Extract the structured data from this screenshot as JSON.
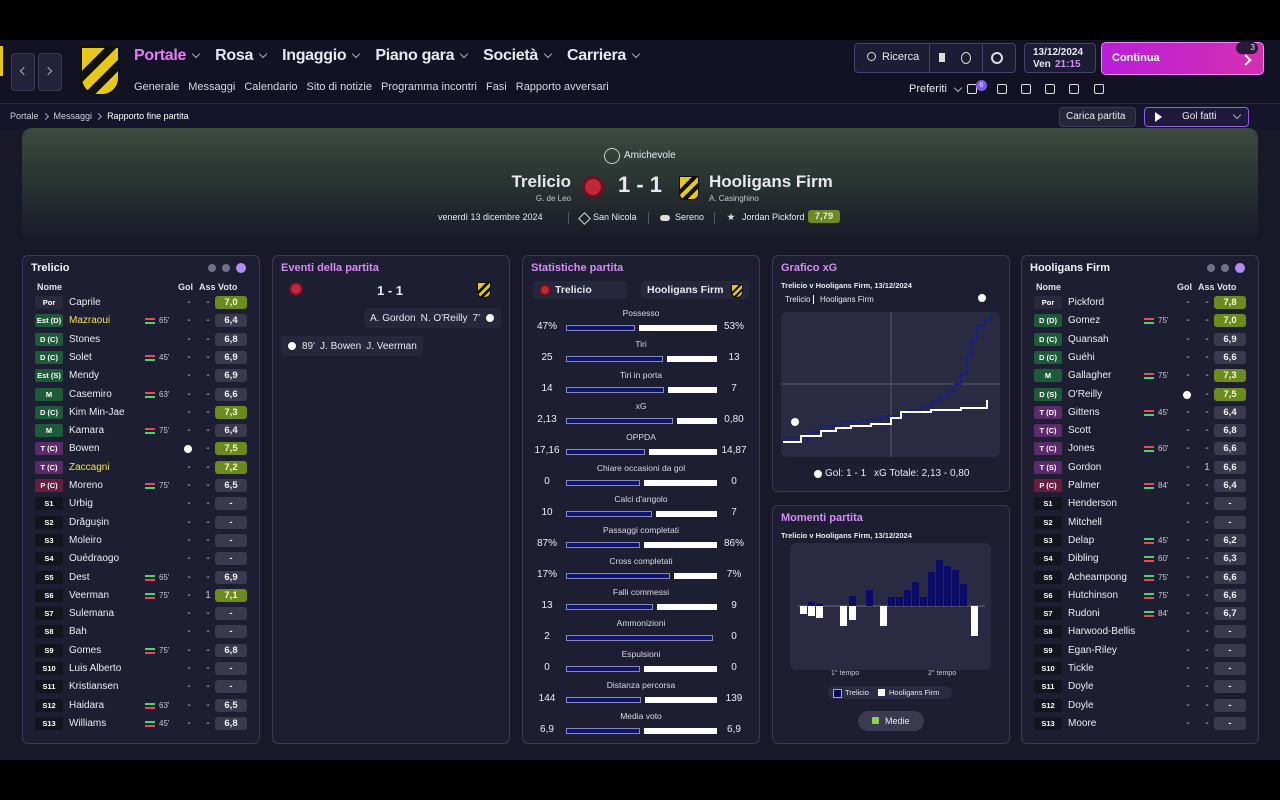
{
  "header": {
    "menu": [
      "Portale",
      "Rosa",
      "Ingaggio",
      "Piano gara",
      "Società",
      "Carriera"
    ],
    "submenu": [
      "Generale",
      "Messaggi",
      "Calendario",
      "Sito di notizie",
      "Programma incontri",
      "Fasi",
      "Rapporto avversari"
    ],
    "search": "Ricerca",
    "date": "13/12/2024",
    "day": "Ven",
    "time": "21:15",
    "continue": "Continua",
    "inbox_count": "3",
    "favorites": "Preferiti",
    "favorites_count": "6"
  },
  "breadcrumb": [
    "Portale",
    "Messaggi",
    "Rapporto fine partita"
  ],
  "actions": {
    "load_match": "Carica partita",
    "highlights": "Gol fatti"
  },
  "match": {
    "competition": "Amichevole",
    "home": "Trelicio",
    "home_manager": "G. de Leo",
    "score": "1 - 1",
    "away": "Hooligans Firm",
    "away_manager": "A. Casinghino",
    "date": "venerdì 13 dicembre 2024",
    "stadium": "San Nicola",
    "weather": "Sereno",
    "player_of_match": "Jordan Pickford",
    "player_of_match_rating": "7,79"
  },
  "home_team": {
    "title": "Trelicio",
    "headers": [
      "Nome",
      "Gol",
      "Ass",
      "Voto"
    ],
    "rows": [
      {
        "pos": "Por",
        "name": "Caprile",
        "gol": "-",
        "ass": "-",
        "voto": "7,0"
      },
      {
        "pos": "Est (D)",
        "name": "Mazraoui",
        "highlight": true,
        "sub": "65'",
        "gol": "-",
        "ass": "-",
        "voto": "6,4"
      },
      {
        "pos": "D (C)",
        "name": "Stones",
        "gol": "-",
        "ass": "-",
        "voto": "6,8"
      },
      {
        "pos": "D (C)",
        "name": "Solet",
        "sub": "45'",
        "gol": "-",
        "ass": "-",
        "voto": "6,9"
      },
      {
        "pos": "Est (S)",
        "name": "Mendy",
        "gol": "-",
        "ass": "-",
        "voto": "6,9"
      },
      {
        "pos": "M",
        "name": "Casemiro",
        "sub": "63'",
        "gol": "-",
        "ass": "-",
        "voto": "6,6"
      },
      {
        "pos": "D (C)",
        "name": "Kim Min-Jae",
        "gol": "-",
        "ass": "-",
        "voto": "7,3"
      },
      {
        "pos": "M",
        "name": "Kamara",
        "sub": "75'",
        "gol": "-",
        "ass": "-",
        "voto": "6,4"
      },
      {
        "pos": "T (C)",
        "name": "Bowen",
        "ass": "-",
        "voto": "7,5"
      },
      {
        "pos": "T (C)",
        "name": "Zaccagni",
        "highlight": true,
        "gol": "-",
        "ass": "-",
        "voto": "7,2"
      },
      {
        "pos": "P (C)",
        "name": "Moreno",
        "sub": "75'",
        "gol": "-",
        "ass": "-",
        "voto": "6,5"
      },
      {
        "pos": "S1",
        "name": "Urbig",
        "gol": "-",
        "ass": "-",
        "voto": "-"
      },
      {
        "pos": "S2",
        "name": "Drăgușin",
        "gol": "-",
        "ass": "-",
        "voto": "-"
      },
      {
        "pos": "S3",
        "name": "Moleiro",
        "gol": "-",
        "ass": "-",
        "voto": "-"
      },
      {
        "pos": "S4",
        "name": "Ouédraogo",
        "gol": "-",
        "ass": "-",
        "voto": "-"
      },
      {
        "pos": "S5",
        "name": "Dest",
        "sub": "65'",
        "gol": "-",
        "ass": "-",
        "voto": "6,9"
      },
      {
        "pos": "S6",
        "name": "Veerman",
        "sub": "75'",
        "gol": "-",
        "ass": "1",
        "voto": "7,1"
      },
      {
        "pos": "S7",
        "name": "Sulemana",
        "gol": "-",
        "ass": "-",
        "voto": "-"
      },
      {
        "pos": "S8",
        "name": "Bah",
        "gol": "-",
        "ass": "-",
        "voto": "-"
      },
      {
        "pos": "S9",
        "name": "Gomes",
        "sub": "75'",
        "gol": "-",
        "ass": "-",
        "voto": "6,8"
      },
      {
        "pos": "S10",
        "name": "Luis Alberto",
        "gol": "-",
        "ass": "-",
        "voto": "-"
      },
      {
        "pos": "S11",
        "name": "Kristiansen",
        "gol": "-",
        "ass": "-",
        "voto": "-"
      },
      {
        "pos": "S12",
        "name": "Haidara",
        "sub": "63'",
        "gol": "-",
        "ass": "-",
        "voto": "6,5"
      },
      {
        "pos": "S13",
        "name": "Williams",
        "sub": "45'",
        "gol": "-",
        "ass": "-",
        "voto": "6,8"
      }
    ]
  },
  "away_team": {
    "title": "Hooligans Firm",
    "headers": [
      "Nome",
      "Gol",
      "Ass",
      "Voto"
    ],
    "rows": [
      {
        "pos": "Por",
        "name": "Pickford",
        "gol": "-",
        "ass": "-",
        "voto": "7,8"
      },
      {
        "pos": "D (D)",
        "name": "Gomez",
        "sub": "75'",
        "gol": "-",
        "ass": "-",
        "voto": "7,0"
      },
      {
        "pos": "D (C)",
        "name": "Quansah",
        "gol": "-",
        "ass": "-",
        "voto": "6,9"
      },
      {
        "pos": "D (C)",
        "name": "Guéhi",
        "gol": "-",
        "ass": "-",
        "voto": "6,6"
      },
      {
        "pos": "M",
        "name": "Gallagher",
        "sub": "75'",
        "gol": "-",
        "ass": "-",
        "voto": "7,3"
      },
      {
        "pos": "D (S)",
        "name": "O'Reilly",
        "ass": "-",
        "voto": "7,5"
      },
      {
        "pos": "T (D)",
        "name": "Gittens",
        "sub": "45'",
        "gol": "-",
        "ass": "-",
        "voto": "6,4"
      },
      {
        "pos": "T (C)",
        "name": "Scott",
        "gol": "-",
        "ass": "-",
        "voto": "6,8"
      },
      {
        "pos": "T (C)",
        "name": "Jones",
        "sub": "60'",
        "gol": "-",
        "ass": "-",
        "voto": "6,6"
      },
      {
        "pos": "T (S)",
        "name": "Gordon",
        "gol": "-",
        "ass": "1",
        "voto": "6,6"
      },
      {
        "pos": "P (C)",
        "name": "Palmer",
        "sub": "84'",
        "gol": "-",
        "ass": "-",
        "voto": "6,4"
      },
      {
        "pos": "S1",
        "name": "Henderson",
        "gol": "-",
        "ass": "-",
        "voto": "-"
      },
      {
        "pos": "S2",
        "name": "Mitchell",
        "gol": "-",
        "ass": "-",
        "voto": "-"
      },
      {
        "pos": "S3",
        "name": "Delap",
        "sub": "45'",
        "gol": "-",
        "ass": "-",
        "voto": "6,2"
      },
      {
        "pos": "S4",
        "name": "Dibling",
        "sub": "60'",
        "gol": "-",
        "ass": "-",
        "voto": "6,3"
      },
      {
        "pos": "S5",
        "name": "Acheampong",
        "sub": "75'",
        "gol": "-",
        "ass": "-",
        "voto": "6,6"
      },
      {
        "pos": "S6",
        "name": "Hutchinson",
        "sub": "75'",
        "gol": "-",
        "ass": "-",
        "voto": "6,6"
      },
      {
        "pos": "S7",
        "name": "Rudoni",
        "sub": "84'",
        "gol": "-",
        "ass": "-",
        "voto": "6,7"
      },
      {
        "pos": "S8",
        "name": "Harwood-Bellis",
        "gol": "-",
        "ass": "-",
        "voto": "-"
      },
      {
        "pos": "S9",
        "name": "Egan-Riley",
        "gol": "-",
        "ass": "-",
        "voto": "-"
      },
      {
        "pos": "S10",
        "name": "Tickle",
        "gol": "-",
        "ass": "-",
        "voto": "-"
      },
      {
        "pos": "S11",
        "name": "Doyle",
        "gol": "-",
        "ass": "-",
        "voto": "-"
      },
      {
        "pos": "S12",
        "name": "Doyle",
        "gol": "-",
        "ass": "-",
        "voto": "-"
      },
      {
        "pos": "S13",
        "name": "Moore",
        "gol": "-",
        "ass": "-",
        "voto": "-"
      }
    ]
  },
  "events": {
    "title": "Eventi della partita",
    "score": "1 - 1",
    "items": [
      {
        "side": "away",
        "assist": "A. Gordon",
        "scorer": "N. O'Reilly",
        "minute": "7'"
      },
      {
        "side": "home",
        "minute": "89'",
        "scorer": "J. Bowen",
        "assist": "J. Veerman"
      }
    ]
  },
  "stats": {
    "title": "Statistiche partita",
    "home": "Trelicio",
    "away": "Hooligans Firm",
    "rows": [
      {
        "label": "Possesso",
        "home": "47%",
        "away": "53%"
      },
      {
        "label": "Tiri",
        "home": "25",
        "away": "13"
      },
      {
        "label": "Tiri in porta",
        "home": "14",
        "away": "7"
      },
      {
        "label": "xG",
        "home": "2,13",
        "away": "0,80"
      },
      {
        "label": "OPPDA",
        "home": "17,16",
        "away": "14,87"
      },
      {
        "label": "Chiare occasioni da gol",
        "home": "0",
        "away": "0"
      },
      {
        "label": "Calci d'angolo",
        "home": "10",
        "away": "7"
      },
      {
        "label": "Passaggi completati",
        "home": "87%",
        "away": "86%"
      },
      {
        "label": "Cross completati",
        "home": "17%",
        "away": "7%"
      },
      {
        "label": "Falli commessi",
        "home": "13",
        "away": "9"
      },
      {
        "label": "Ammonizioni",
        "home": "2",
        "away": "0"
      },
      {
        "label": "Espulsioni",
        "home": "0",
        "away": "0"
      },
      {
        "label": "Distanza percorsa",
        "home": "144",
        "away": "139"
      },
      {
        "label": "Media voto",
        "home": "6,9",
        "away": "6,9"
      }
    ]
  },
  "xg_chart": {
    "title": "Grafico xG",
    "subtitle": "Trelicio v Hooligans Firm, 13/12/2024",
    "legend": [
      "Trelicio",
      "Hooligans Firm"
    ],
    "goals": "Gol: 1 - 1",
    "xg_total": "xG Totale: 2,13 - 0,80"
  },
  "momentum": {
    "title": "Momenti partita",
    "subtitle": "Trelicio v Hooligans Firm, 13/12/2024",
    "halves": [
      "1° tempo",
      "2° tempo"
    ],
    "legend": [
      "Trelicio",
      "Hooligans Firm"
    ],
    "button": "Medie"
  }
}
